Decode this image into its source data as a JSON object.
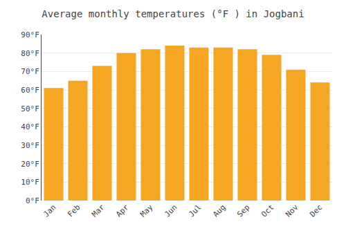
{
  "chart_data": {
    "type": "bar",
    "title": "Average monthly temperatures (°F ) in Jogbani",
    "categories": [
      "Jan",
      "Feb",
      "Mar",
      "Apr",
      "May",
      "Jun",
      "Jul",
      "Aug",
      "Sep",
      "Oct",
      "Nov",
      "Dec"
    ],
    "values": [
      61,
      65,
      73,
      80,
      82,
      84,
      83,
      83,
      82,
      79,
      71,
      64
    ],
    "color": "#F5A623",
    "ylim": [
      0,
      90
    ],
    "yticks": [
      {
        "value": 0,
        "label": "0°F"
      },
      {
        "value": 10,
        "label": "10°F"
      },
      {
        "value": 20,
        "label": "20°F"
      },
      {
        "value": 30,
        "label": "30°F"
      },
      {
        "value": 40,
        "label": "40°F"
      },
      {
        "value": 50,
        "label": "50°F"
      },
      {
        "value": 60,
        "label": "60°F"
      },
      {
        "value": 70,
        "label": "70°F"
      },
      {
        "value": 80,
        "label": "80°F"
      },
      {
        "value": 90,
        "label": "90°F"
      }
    ],
    "grid": true
  }
}
